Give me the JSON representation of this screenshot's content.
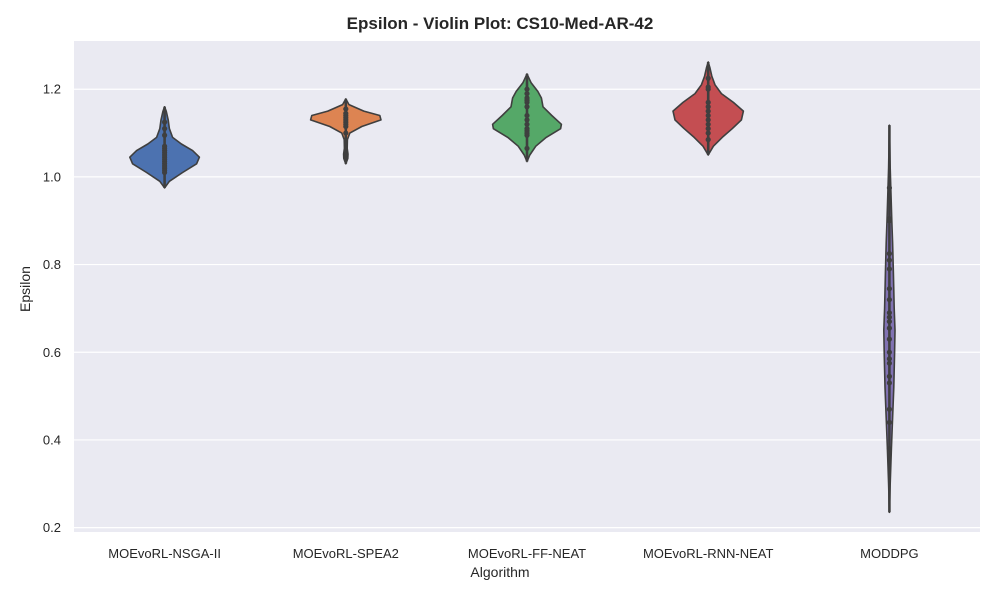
{
  "chart_data": {
    "type": "violin",
    "title": "Epsilon - Violin Plot: CS10-Med-AR-42",
    "xlabel": "Algorithm",
    "ylabel": "Epsilon",
    "ylim": [
      0.19,
      1.31
    ],
    "yticks": [
      0.2,
      0.4,
      0.6,
      0.8,
      1.0,
      1.2
    ],
    "ytick_labels": [
      "0.2",
      "0.4",
      "0.6",
      "0.8",
      "1.0",
      "1.2"
    ],
    "grid": true,
    "background": "#eaeaf2",
    "categories": [
      "MOEvoRL-NSGA-II",
      "MOEvoRL-SPEA2",
      "MOEvoRL-FF-NEAT",
      "MOEvoRL-RNN-NEAT",
      "MODDPG"
    ],
    "series": [
      {
        "color": "#4c72b0",
        "range": [
          0.975,
          1.16
        ],
        "density": [
          [
            0.975,
            0
          ],
          [
            0.99,
            0.12
          ],
          [
            1.01,
            0.45
          ],
          [
            1.03,
            0.8
          ],
          [
            1.045,
            0.87
          ],
          [
            1.06,
            0.7
          ],
          [
            1.075,
            0.42
          ],
          [
            1.09,
            0.2
          ],
          [
            1.11,
            0.12
          ],
          [
            1.13,
            0.09
          ],
          [
            1.15,
            0.04
          ],
          [
            1.16,
            0
          ]
        ],
        "points": [
          1.01,
          1.015,
          1.02,
          1.025,
          1.03,
          1.035,
          1.04,
          1.045,
          1.05,
          1.055,
          1.06,
          1.065,
          1.07,
          1.095,
          1.11,
          1.125
        ]
      },
      {
        "color": "#dd8452",
        "range": [
          1.03,
          1.178
        ],
        "density": [
          [
            1.03,
            0
          ],
          [
            1.042,
            0.05
          ],
          [
            1.052,
            0.055
          ],
          [
            1.065,
            0.035
          ],
          [
            1.085,
            0.04
          ],
          [
            1.1,
            0.1
          ],
          [
            1.115,
            0.4
          ],
          [
            1.13,
            0.88
          ],
          [
            1.14,
            0.85
          ],
          [
            1.15,
            0.45
          ],
          [
            1.165,
            0.08
          ],
          [
            1.178,
            0
          ]
        ],
        "points": [
          1.045,
          1.05,
          1.1,
          1.115,
          1.12,
          1.125,
          1.13,
          1.135,
          1.14,
          1.145,
          1.155
        ]
      },
      {
        "color": "#55a868",
        "range": [
          1.035,
          1.235
        ],
        "density": [
          [
            1.035,
            0
          ],
          [
            1.05,
            0.07
          ],
          [
            1.07,
            0.22
          ],
          [
            1.09,
            0.48
          ],
          [
            1.11,
            0.84
          ],
          [
            1.12,
            0.86
          ],
          [
            1.14,
            0.62
          ],
          [
            1.16,
            0.4
          ],
          [
            1.18,
            0.36
          ],
          [
            1.195,
            0.27
          ],
          [
            1.215,
            0.1
          ],
          [
            1.235,
            0
          ]
        ],
        "points": [
          1.065,
          1.095,
          1.1,
          1.105,
          1.11,
          1.12,
          1.13,
          1.14,
          1.16,
          1.17,
          1.175,
          1.18,
          1.19,
          1.2
        ]
      },
      {
        "color": "#c44e52",
        "range": [
          1.05,
          1.262
        ],
        "density": [
          [
            1.05,
            0
          ],
          [
            1.07,
            0.13
          ],
          [
            1.09,
            0.35
          ],
          [
            1.11,
            0.6
          ],
          [
            1.13,
            0.83
          ],
          [
            1.15,
            0.88
          ],
          [
            1.17,
            0.63
          ],
          [
            1.19,
            0.33
          ],
          [
            1.21,
            0.17
          ],
          [
            1.23,
            0.09
          ],
          [
            1.25,
            0.04
          ],
          [
            1.262,
            0
          ]
        ],
        "points": [
          1.085,
          1.1,
          1.11,
          1.12,
          1.13,
          1.14,
          1.15,
          1.16,
          1.17,
          1.2,
          1.205,
          1.225
        ]
      },
      {
        "color": "#8172b3",
        "range": [
          0.235,
          1.118
        ],
        "density": [
          [
            0.235,
            0
          ],
          [
            0.3,
            0.02
          ],
          [
            0.38,
            0.05
          ],
          [
            0.45,
            0.08
          ],
          [
            0.52,
            0.11
          ],
          [
            0.6,
            0.13
          ],
          [
            0.65,
            0.14
          ],
          [
            0.7,
            0.12
          ],
          [
            0.78,
            0.1
          ],
          [
            0.85,
            0.08
          ],
          [
            0.9,
            0.06
          ],
          [
            0.96,
            0.04
          ],
          [
            1.02,
            0.02
          ],
          [
            1.118,
            0
          ]
        ],
        "points": [
          0.38,
          0.44,
          0.47,
          0.53,
          0.545,
          0.575,
          0.585,
          0.6,
          0.63,
          0.655,
          0.67,
          0.68,
          0.69,
          0.72,
          0.745,
          0.79,
          0.81,
          0.825,
          0.9,
          0.905,
          0.975
        ]
      }
    ]
  }
}
